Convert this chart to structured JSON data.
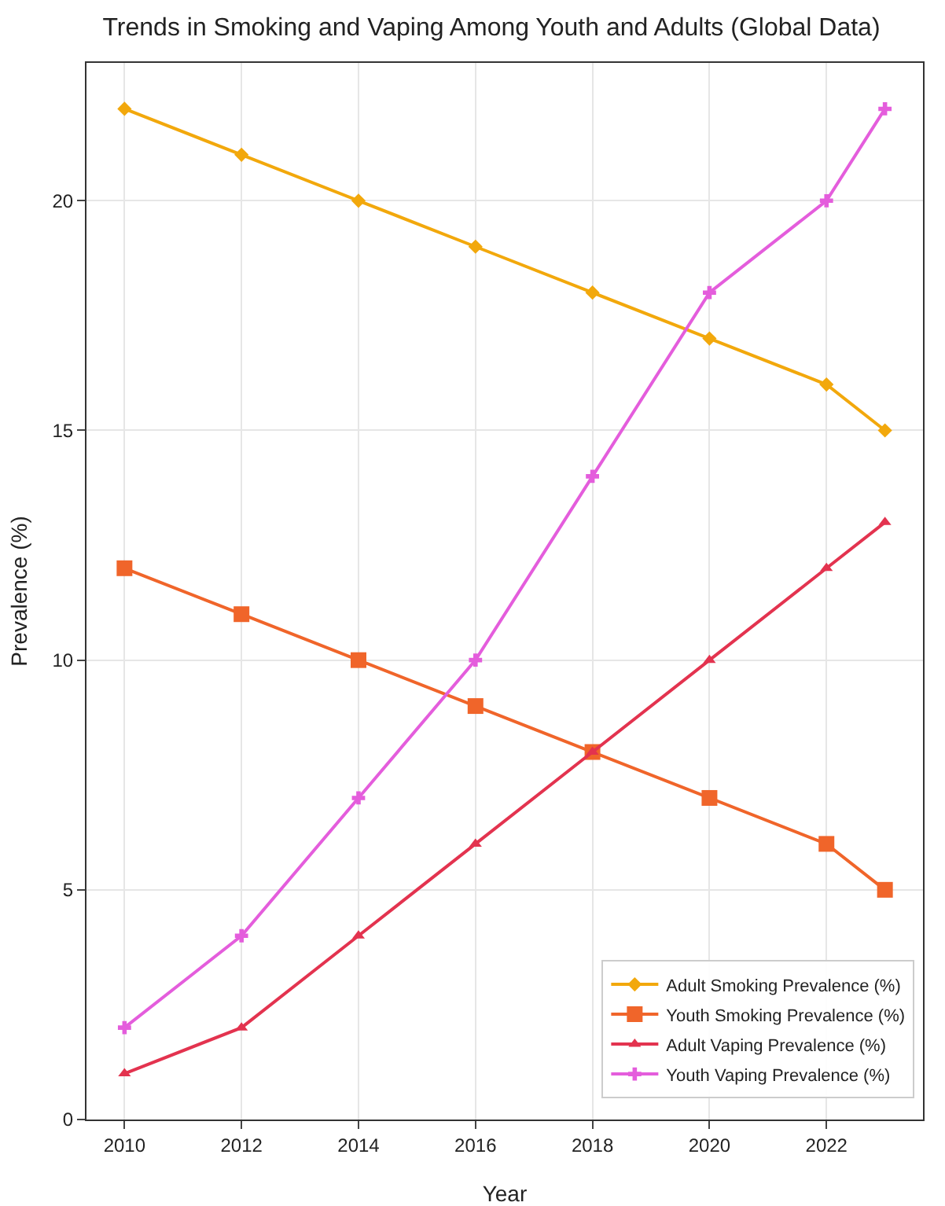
{
  "chart_data": {
    "type": "line",
    "title": "Trends in Smoking and Vaping Among Youth and Adults (Global Data)",
    "xlabel": "Year",
    "ylabel": "Prevalence (%)",
    "x": [
      2010,
      2012,
      2014,
      2016,
      2018,
      2020,
      2022,
      2023
    ],
    "series": [
      {
        "name": "Adult Smoking Prevalence (%)",
        "color": "#f2a80c",
        "marker": "diamond",
        "values": [
          22,
          21,
          20,
          19,
          18,
          17,
          16,
          15
        ]
      },
      {
        "name": "Youth Smoking Prevalence (%)",
        "color": "#f0652a",
        "marker": "square",
        "values": [
          12,
          11,
          10,
          9,
          8,
          7,
          6,
          5
        ]
      },
      {
        "name": "Adult Vaping Prevalence (%)",
        "color": "#e3334f",
        "marker": "triangle",
        "values": [
          1,
          2,
          4,
          6,
          8,
          10,
          12,
          13
        ]
      },
      {
        "name": "Youth Vaping Prevalence (%)",
        "color": "#e45ddc",
        "marker": "cross",
        "values": [
          2,
          4,
          7,
          10,
          14,
          18,
          20,
          22
        ]
      }
    ],
    "xlim": [
      2009.35,
      2023.65
    ],
    "xticks": [
      2010,
      2012,
      2014,
      2016,
      2018,
      2020,
      2022
    ],
    "ylim": [
      0,
      23
    ],
    "yticks": [
      0,
      5,
      10,
      15,
      20
    ],
    "grid": true,
    "legend": "bottom right",
    "line_style": "solid"
  }
}
